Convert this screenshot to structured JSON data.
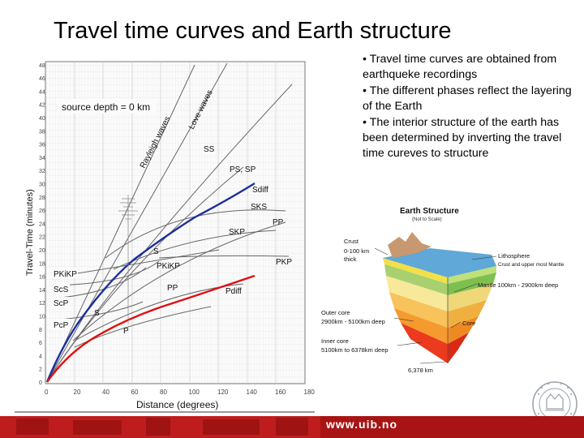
{
  "slide": {
    "title": "Travel time curves and Earth structure",
    "bullets": [
      "• Travel time curves are obtained from earthqueke recordings",
      "• The different phases reflect the layering of the Earth",
      "• The interior structure of the earth has been determined by inverting the travel time cureves to structure"
    ],
    "footer_url": "www.uib.no",
    "logo_text": "UNIVERSITAS BERGENSIS"
  },
  "plot": {
    "xlabel": "Distance (degrees)",
    "ylabel": "Travel-Time (minutes)",
    "source_depth": "source depth = 0 km",
    "x_ticks": [
      "0",
      "20",
      "40",
      "60",
      "80",
      "100",
      "120",
      "140",
      "160",
      "180"
    ],
    "y_ticks": [
      "0",
      "2",
      "4",
      "6",
      "8",
      "10",
      "12",
      "14",
      "16",
      "18",
      "20",
      "22",
      "24",
      "26",
      "28",
      "30",
      "32",
      "34",
      "36",
      "38",
      "40",
      "42",
      "44",
      "46",
      "48"
    ],
    "phases_left": [
      "PKiKP",
      "ScS",
      "ScP",
      "PcP"
    ],
    "phases": [
      "Love waves",
      "Rayleigh waves",
      "SS",
      "PS, SP",
      "Sdiff",
      "SKS",
      "PP",
      "SKP",
      "PKP",
      "S",
      "PKiKP",
      "PP",
      "Pdiff",
      "S",
      "P"
    ],
    "colors": {
      "s_wave": "#1a2f9e",
      "p_wave": "#e01010"
    }
  },
  "earth_structure": {
    "title": "Earth Structure",
    "subtitle": "(Not to Scale)",
    "crust_label": "Crust",
    "crust_depth": "0-100 km",
    "crust_thick": "thick",
    "lithosphere_label": "Lithosphere",
    "lithosphere_sub": "Crust and upper most Mantle",
    "mantle_label": "Mantle 100km - 2900km deep",
    "outer_core_label": "Outer core",
    "outer_core_depth": "2900km - 5100km deep",
    "core_label": "Core",
    "inner_core_label": "Inner core",
    "inner_core_depth": "5100km to 6378km deep",
    "radius_label": "6,378 km"
  }
}
